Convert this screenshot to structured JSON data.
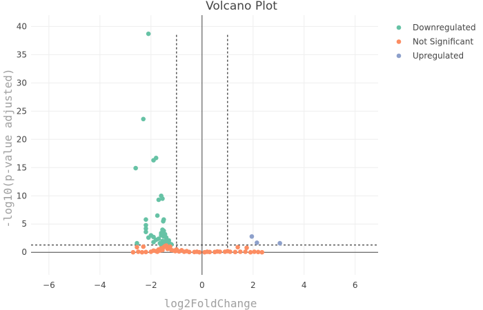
{
  "chart_data": {
    "type": "scatter",
    "title": "Volcano Plot",
    "xlabel": "log2FoldChange",
    "ylabel": "-log10(p-value adjusted)",
    "xlim": [
      -6.7,
      6.9
    ],
    "ylim": [
      -4,
      42
    ],
    "xticks": [
      -6,
      -4,
      -2,
      0,
      2,
      4,
      6
    ],
    "yticks": [
      0,
      5,
      10,
      15,
      20,
      25,
      30,
      35,
      40
    ],
    "xtick_labels": [
      "−6",
      "−4",
      "−2",
      "0",
      "2",
      "4",
      "6"
    ],
    "ytick_labels": [
      "0",
      "5",
      "10",
      "15",
      "20",
      "25",
      "30",
      "35",
      "40"
    ],
    "grid": true,
    "legend_position": "top-right",
    "thresholds": {
      "x": [
        -1,
        1
      ],
      "y": 1.3
    },
    "series": [
      {
        "name": "Downregulated",
        "color": "#66c2a5",
        "points": [
          [
            -2.1,
            38.7
          ],
          [
            -2.3,
            23.6
          ],
          [
            -1.8,
            16.7
          ],
          [
            -1.9,
            16.3
          ],
          [
            -2.6,
            14.9
          ],
          [
            -1.6,
            10.0
          ],
          [
            -1.55,
            9.5
          ],
          [
            -1.7,
            9.3
          ],
          [
            -1.5,
            5.8
          ],
          [
            -1.52,
            5.5
          ],
          [
            -1.75,
            6.5
          ],
          [
            -2.2,
            5.8
          ],
          [
            -2.2,
            4.8
          ],
          [
            -2.2,
            4.2
          ],
          [
            -2.2,
            3.6
          ],
          [
            -1.55,
            4.0
          ],
          [
            -1.5,
            3.8
          ],
          [
            -1.6,
            3.4
          ],
          [
            -1.45,
            3.2
          ],
          [
            -1.4,
            2.6
          ],
          [
            -1.6,
            3.0
          ],
          [
            -1.5,
            2.8
          ],
          [
            -2.0,
            3.0
          ],
          [
            -1.9,
            2.7
          ],
          [
            -2.1,
            2.6
          ],
          [
            -1.7,
            2.4
          ],
          [
            -1.3,
            2.1
          ],
          [
            -1.35,
            1.9
          ],
          [
            -1.8,
            2.2
          ],
          [
            -1.55,
            2.0
          ],
          [
            -1.4,
            2.2
          ],
          [
            -1.65,
            1.6
          ],
          [
            -2.55,
            1.6
          ],
          [
            -1.5,
            1.5
          ],
          [
            -1.25,
            1.5
          ],
          [
            -1.2,
            1.4
          ],
          [
            -1.45,
            1.7
          ],
          [
            -1.3,
            1.6
          ],
          [
            -1.9,
            1.8
          ],
          [
            -1.6,
            1.3
          ]
        ]
      },
      {
        "name": "Not Significant",
        "color": "#fc8d62",
        "points": [
          [
            -2.7,
            0.0
          ],
          [
            -2.5,
            0.1
          ],
          [
            -2.35,
            0.0
          ],
          [
            -2.2,
            0.05
          ],
          [
            -2.0,
            0.1
          ],
          [
            -1.9,
            0.3
          ],
          [
            -1.8,
            0.2
          ],
          [
            -1.7,
            0.5
          ],
          [
            -1.6,
            0.7
          ],
          [
            -1.5,
            0.9
          ],
          [
            -1.45,
            1.1
          ],
          [
            -1.4,
            1.2
          ],
          [
            -1.35,
            0.6
          ],
          [
            -1.3,
            0.8
          ],
          [
            -1.25,
            1.0
          ],
          [
            -1.2,
            0.4
          ],
          [
            -1.1,
            0.3
          ],
          [
            -1.05,
            0.2
          ],
          [
            -2.3,
            1.0
          ],
          [
            -2.55,
            0.9
          ],
          [
            -1.65,
            0.3
          ],
          [
            -1.55,
            0.4
          ],
          [
            -1.75,
            0.1
          ],
          [
            -0.9,
            0.15
          ],
          [
            -0.7,
            0.1
          ],
          [
            -0.5,
            0.05
          ],
          [
            -0.3,
            0.05
          ],
          [
            -0.1,
            0.0
          ],
          [
            0.1,
            0.0
          ],
          [
            0.3,
            0.05
          ],
          [
            0.5,
            0.05
          ],
          [
            0.7,
            0.1
          ],
          [
            0.9,
            0.1
          ],
          [
            1.1,
            0.1
          ],
          [
            1.3,
            0.05
          ],
          [
            1.4,
            0.9
          ],
          [
            1.5,
            0.1
          ],
          [
            1.7,
            0.1
          ],
          [
            1.75,
            0.8
          ],
          [
            1.9,
            0.0
          ],
          [
            2.05,
            0.1
          ],
          [
            2.2,
            0.05
          ],
          [
            2.35,
            0.0
          ],
          [
            -0.2,
            0.1
          ],
          [
            0.2,
            0.1
          ],
          [
            -0.6,
            0.2
          ],
          [
            0.6,
            0.15
          ],
          [
            -1.0,
            0.5
          ],
          [
            1.0,
            0.2
          ],
          [
            -0.8,
            0.35
          ]
        ]
      },
      {
        "name": "Upregulated",
        "color": "#8da0cb",
        "points": [
          [
            1.95,
            2.8
          ],
          [
            2.15,
            1.7
          ],
          [
            3.05,
            1.6
          ]
        ]
      }
    ]
  }
}
